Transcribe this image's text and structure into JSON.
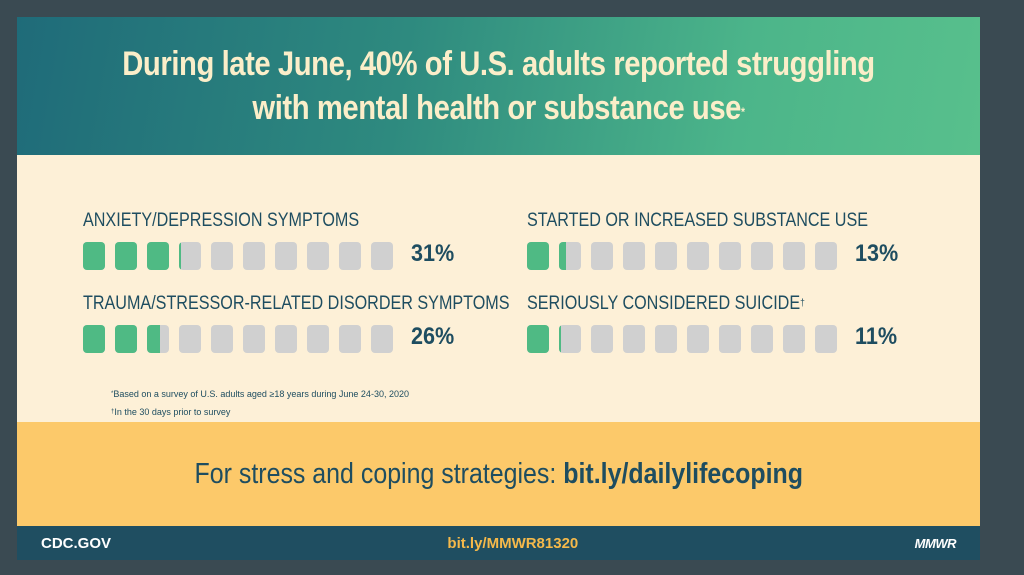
{
  "header": {
    "title_line1": "During late June, 40% of U.S. adults reported struggling",
    "title_line2": "with mental health or substance use",
    "title_mark": "*"
  },
  "chart_data": {
    "type": "bar",
    "units_per_metric": 10,
    "series": [
      {
        "name": "ANXIETY/DEPRESSION SYMPTOMS",
        "value": 31,
        "label": "31%",
        "mark": ""
      },
      {
        "name": "TRAUMA/STRESSOR-RELATED DISORDER SYMPTOMS",
        "value": 26,
        "label": "26%",
        "mark": ""
      },
      {
        "name": "STARTED OR INCREASED SUBSTANCE USE",
        "value": 13,
        "label": "13%",
        "mark": ""
      },
      {
        "name": "SERIOUSLY CONSIDERED SUICIDE",
        "value": 11,
        "label": "11%",
        "mark": "†"
      }
    ],
    "fill_color": "#4fba84",
    "empty_color": "#d0d0d0"
  },
  "notes": {
    "note1_mark": "*",
    "note1": "Based on a survey of U.S. adults aged  ≥18 years during June 24-30, 2020",
    "note2_mark": "†",
    "note2": "In the 30 days prior to survey"
  },
  "cta": {
    "prefix": "For stress and coping strategies: ",
    "link": "bit.ly/dailylifecoping"
  },
  "bottom": {
    "left": "CDC.GOV",
    "center": "bit.ly/MMWR81320",
    "right": "MMWR"
  }
}
